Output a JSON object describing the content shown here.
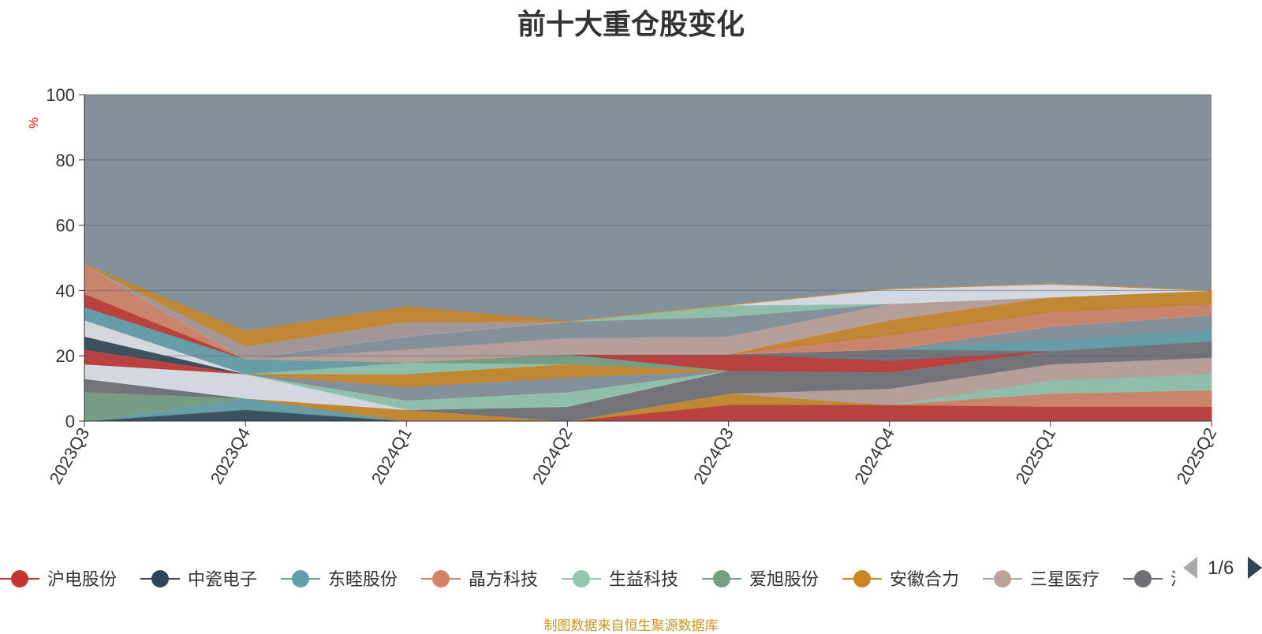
{
  "chart_title": "前十大重仓股变化",
  "footer_source": "制图数据来自恒生聚源数据库",
  "legend_pager": "1/6",
  "chart_data": {
    "type": "area",
    "title": "前十大重仓股变化",
    "ylabel": "%",
    "xlabel": "",
    "ylim": [
      0,
      100
    ],
    "yticks": [
      "0",
      "20",
      "40",
      "60",
      "80",
      "100"
    ],
    "categories": [
      "2023Q3",
      "2023Q4",
      "2024Q1",
      "2024Q2",
      "2024Q3",
      "2024Q4",
      "2025Q1",
      "2025Q2"
    ],
    "background_color": "#84909a",
    "legend_visible_entries": [
      "沪电股份",
      "中瓷电子",
      "东睦股份",
      "晶方科技",
      "生益科技",
      "爱旭股份",
      "安徽合力",
      "三星医疗",
      "沪"
    ],
    "series": [
      {
        "name": "沪电股份",
        "color": "#c23531",
        "values": [
          0,
          0,
          0,
          0,
          5.0,
          5.0,
          4.5,
          4.5
        ]
      },
      {
        "name": "中瓷电子",
        "color": "#2f4554",
        "values": [
          0,
          3.5,
          0,
          0,
          0,
          0,
          0,
          0
        ]
      },
      {
        "name": "东睦股份",
        "color": "#61a0a8",
        "values": [
          0,
          3.5,
          0,
          0,
          0,
          0,
          0,
          0
        ]
      },
      {
        "name": "安徽合力",
        "color": "#ca8622",
        "values": [
          0,
          0,
          3.5,
          0,
          3.5,
          0,
          0,
          0
        ]
      },
      {
        "name": "晶方科技",
        "color": "#d48265",
        "values": [
          0,
          0,
          0,
          0,
          0,
          0,
          4.0,
          5.0
        ]
      },
      {
        "name": "生益科技",
        "color": "#91c7ae",
        "values": [
          0,
          0,
          0,
          0,
          0,
          0,
          4.0,
          5.0
        ]
      },
      {
        "name": "爱旭股份",
        "color": "#749f83",
        "values": [
          9,
          0,
          0,
          0,
          0,
          0,
          0,
          0
        ]
      },
      {
        "name": "三星医疗",
        "color": "#bda29a",
        "values": [
          0,
          0,
          0,
          0,
          0,
          5.0,
          5.0,
          5.0
        ]
      },
      {
        "name": "沪",
        "color": "#6e7074",
        "values": [
          4.0,
          0,
          0,
          4.5,
          7.0,
          5.0,
          4.0,
          5.0
        ]
      },
      {
        "name": "",
        "color": "#dfe4ec",
        "values": [
          4.5,
          7.5,
          0,
          0,
          0,
          0,
          0,
          0
        ]
      },
      {
        "name": "",
        "color": "#91c7ae",
        "values": [
          0,
          0,
          3.0,
          4.5,
          0,
          0,
          0,
          0
        ]
      },
      {
        "name": "",
        "color": "#d48265",
        "values": [
          0,
          0,
          0,
          0,
          0,
          0,
          0,
          0
        ]
      },
      {
        "name": "",
        "color": "#c23531",
        "values": [
          4.5,
          0,
          0,
          0,
          0,
          0,
          0,
          0
        ]
      },
      {
        "name": "",
        "color": "#84909a",
        "values": [
          0,
          0,
          4.0,
          4.5,
          0,
          0,
          0,
          0
        ]
      },
      {
        "name": "",
        "color": "#d48265",
        "values": [
          0,
          0,
          0,
          0,
          0,
          0,
          0,
          0
        ]
      },
      {
        "name": "",
        "color": "#ca8622",
        "values": [
          0,
          0,
          4.0,
          4.0,
          0,
          0,
          0,
          0
        ]
      },
      {
        "name": "",
        "color": "#91c7ae",
        "values": [
          0,
          0,
          3.5,
          0,
          0,
          0,
          0,
          0
        ]
      },
      {
        "name": "",
        "color": "#749f83",
        "values": [
          0,
          0,
          0,
          3.0,
          0,
          0,
          0,
          0
        ]
      },
      {
        "name": "",
        "color": "#c23531",
        "values": [
          0,
          0,
          0,
          0,
          5.0,
          3.5,
          0,
          0
        ]
      },
      {
        "name": "",
        "color": "#6e7074",
        "values": [
          0,
          0,
          0,
          0,
          0,
          3.5,
          0,
          0
        ]
      },
      {
        "name": "",
        "color": "#61a0a8",
        "values": [
          0,
          0,
          0,
          0,
          0,
          0,
          3.5,
          3.5
        ]
      },
      {
        "name": "",
        "color": "#ca8622",
        "values": [
          0,
          0,
          0,
          0,
          0,
          0,
          0,
          0
        ]
      },
      {
        "name": "",
        "color": "#2f4554",
        "values": [
          4.0,
          0,
          0,
          0,
          0,
          0,
          0,
          0
        ]
      },
      {
        "name": "",
        "color": "#bda29a",
        "values": [
          0,
          0,
          0,
          0,
          0,
          0,
          0,
          0
        ]
      },
      {
        "name": "",
        "color": "#84909a",
        "values": [
          0,
          0,
          0,
          0,
          0,
          0,
          4.0,
          4.5
        ]
      },
      {
        "name": "",
        "color": "#dfe4ec",
        "values": [
          5.0,
          0,
          0,
          0,
          0,
          0,
          0,
          0
        ]
      },
      {
        "name": "",
        "color": "#d48265",
        "values": [
          0,
          0,
          0,
          0,
          0,
          4.5,
          4.5,
          3.5
        ]
      },
      {
        "name": "",
        "color": "#61a0a8",
        "values": [
          4.0,
          4.5,
          0,
          0,
          0,
          0,
          0,
          0
        ]
      },
      {
        "name": "",
        "color": "#c23531",
        "values": [
          4.0,
          0,
          0,
          0,
          0,
          0,
          0,
          0
        ]
      },
      {
        "name": "",
        "color": "#ca8622",
        "values": [
          0,
          0,
          0,
          0,
          0,
          4.5,
          4.5,
          4.0
        ]
      },
      {
        "name": "",
        "color": "#d48265",
        "values": [
          9,
          0,
          0,
          0,
          0,
          0,
          0,
          0
        ]
      },
      {
        "name": "",
        "color": "#bda29a",
        "values": [
          0,
          0,
          4.0,
          5.0,
          5.5,
          5.0,
          0,
          0
        ]
      },
      {
        "name": "",
        "color": "#84909a",
        "values": [
          0,
          0,
          4.0,
          5.0,
          6.0,
          0,
          0,
          0
        ]
      },
      {
        "name": "",
        "color": "#91c7ae",
        "values": [
          0,
          0,
          0,
          0,
          3.5,
          0,
          0,
          0
        ]
      },
      {
        "name": "",
        "color": "#dfe4ec",
        "values": [
          0,
          0,
          0,
          0,
          0,
          4.5,
          4.0,
          0
        ]
      },
      {
        "name": "",
        "color": "#a89895",
        "values": [
          0,
          4.0,
          4.5,
          0,
          0,
          0,
          0,
          0
        ]
      },
      {
        "name": "",
        "color": "#ca8622",
        "values": [
          0,
          4.5,
          4.5,
          0,
          0,
          0,
          0,
          0
        ]
      }
    ]
  }
}
